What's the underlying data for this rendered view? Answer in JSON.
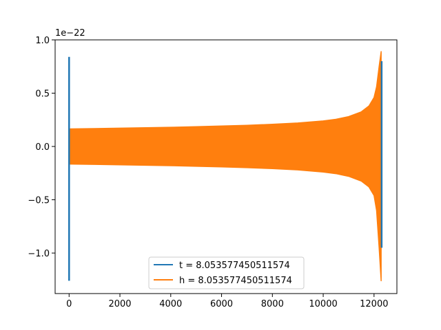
{
  "chart_data": {
    "type": "line",
    "y_offset_label": "1e−22",
    "xlim": [
      -550,
      12900
    ],
    "ylim": [
      -1.38,
      1.0
    ],
    "x_ticks": [
      0,
      2000,
      4000,
      6000,
      8000,
      10000,
      12000
    ],
    "x_tick_labels": [
      "0",
      "2000",
      "4000",
      "6000",
      "8000",
      "10000",
      "12000"
    ],
    "y_ticks": [
      -1.0,
      -0.5,
      0.0,
      0.5,
      1.0
    ],
    "y_tick_labels": [
      "−1.0",
      "−0.5",
      "0.0",
      "0.5",
      "1.0"
    ],
    "legend_position": "lower-center",
    "colors": {
      "series_t": "#1f77b4",
      "series_h": "#ff7f0e"
    },
    "series": [
      {
        "name": "t = 8.053577450511574",
        "shape": "two narrow bursts",
        "bursts": [
          {
            "x": 0,
            "ymin": -1.26,
            "ymax": 0.84
          },
          {
            "x": 12300,
            "ymin": -0.95,
            "ymax": 0.8
          }
        ]
      },
      {
        "name": "h = 8.053577450511574",
        "shape": "oscillation envelope",
        "envelope": {
          "x": [
            0,
            1000,
            2000,
            3000,
            4000,
            5000,
            6000,
            7000,
            8000,
            9000,
            10000,
            10500,
            11000,
            11500,
            11800,
            12000,
            12100,
            12200,
            12280
          ],
          "upper": [
            0.165,
            0.168,
            0.172,
            0.176,
            0.18,
            0.186,
            0.192,
            0.199,
            0.208,
            0.22,
            0.24,
            0.255,
            0.28,
            0.325,
            0.38,
            0.46,
            0.56,
            0.75,
            0.89
          ],
          "lower": [
            -0.165,
            -0.168,
            -0.172,
            -0.176,
            -0.18,
            -0.186,
            -0.192,
            -0.199,
            -0.208,
            -0.22,
            -0.24,
            -0.255,
            -0.28,
            -0.325,
            -0.38,
            -0.46,
            -0.6,
            -0.95,
            -1.26
          ]
        }
      }
    ]
  }
}
